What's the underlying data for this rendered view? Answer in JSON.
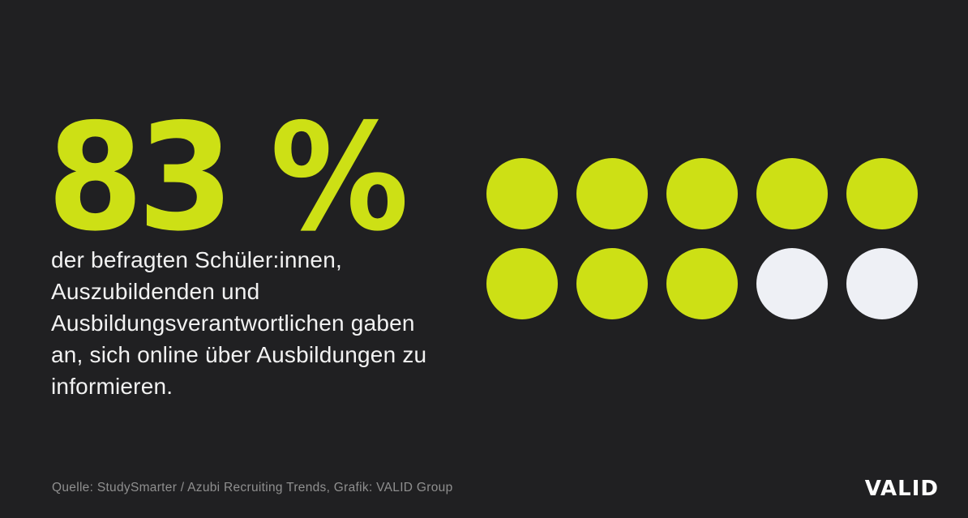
{
  "page": {
    "background_color": "#202022"
  },
  "stat": {
    "value_label": "83 %",
    "accent_color": "#cde015",
    "text_color": "#f2f2f2",
    "description_lines": [
      "der befragten Schüler:innen,",
      "Auszubildenden und",
      "Ausbildungsverantwortlichen gaben",
      "an, sich online über Ausbildungen zu",
      "informieren."
    ]
  },
  "chart_data": {
    "type": "pictogram",
    "value_percent": 83,
    "unit_shape": "circle",
    "units_total": 10,
    "units_filled": 8,
    "units_empty": 2,
    "columns": 5,
    "rows": 2,
    "filled_color": "#cde015",
    "empty_color": "#eef0f5",
    "units": [
      "filled",
      "filled",
      "filled",
      "filled",
      "filled",
      "filled",
      "filled",
      "filled",
      "empty",
      "empty"
    ]
  },
  "footer": {
    "source_label": "Quelle: StudySmarter / Azubi Recruiting Trends,  Grafik: VALID Group",
    "source_color": "#8f8f8f",
    "brand_logo": "VALID"
  }
}
